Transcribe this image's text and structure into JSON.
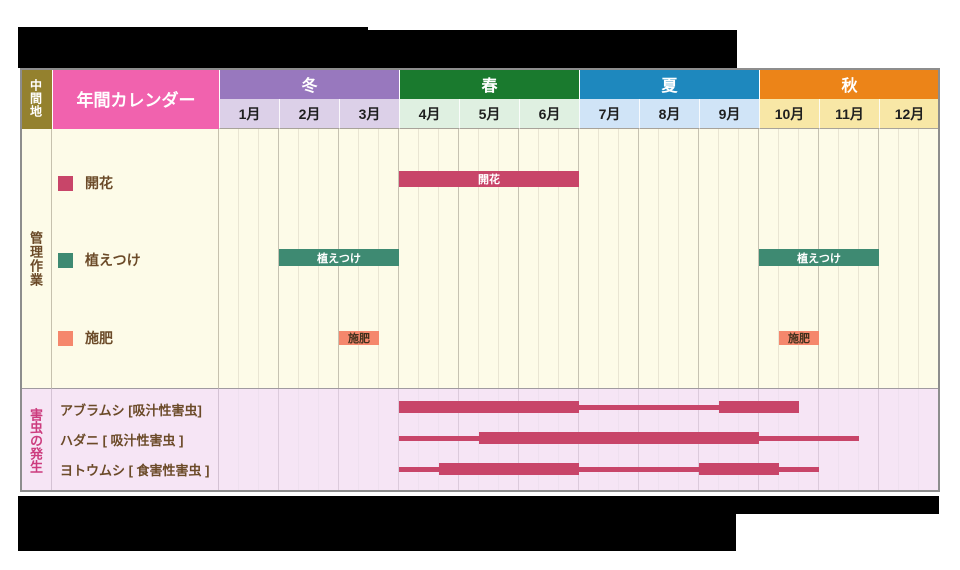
{
  "header": {
    "region": "中間地",
    "calendar_title": "年間カレンダー",
    "seasons": [
      {
        "label": "冬",
        "name": "winter",
        "color": "#9878BE",
        "month_bg": "#DCD0E8"
      },
      {
        "label": "春",
        "name": "spring",
        "color": "#1A7A2E",
        "month_bg": "#DFF0E1"
      },
      {
        "label": "夏",
        "name": "summer",
        "color": "#1E88BE",
        "month_bg": "#D0E4F7"
      },
      {
        "label": "秋",
        "name": "autumn",
        "color": "#EC8418",
        "month_bg": "#F8E7A6"
      }
    ],
    "months": [
      "1月",
      "2月",
      "3月",
      "4月",
      "5月",
      "6月",
      "7月",
      "8月",
      "9月",
      "10月",
      "11月",
      "12月"
    ]
  },
  "sections": {
    "management": {
      "label": "管理作業"
    },
    "pests": {
      "label": "害虫の発生"
    }
  },
  "chart_data": {
    "type": "gantt",
    "x_unit": "month number 1-13, fractional = thirds of a month",
    "categories": [
      "1月",
      "2月",
      "3月",
      "4月",
      "5月",
      "6月",
      "7月",
      "8月",
      "9月",
      "10月",
      "11月",
      "12月"
    ],
    "tasks": [
      {
        "name": "開花",
        "color": "#C84569",
        "bar_text_color": "#FFFFFF",
        "ranges": [
          {
            "from": 4,
            "to": 7
          }
        ]
      },
      {
        "name": "植えつけ",
        "color": "#3E8A72",
        "bar_text_color": "#FFFFFF",
        "ranges": [
          {
            "from": 2,
            "to": 4
          },
          {
            "from": 10,
            "to": 12
          }
        ]
      },
      {
        "name": "施肥",
        "color": "#F5876C",
        "bar_text_color": "#40301C",
        "ranges": [
          {
            "from": 3,
            "to": 3.67
          },
          {
            "from": 10.33,
            "to": 11
          }
        ]
      }
    ],
    "pest_rows": [
      {
        "name": "アブラムシ [吸汁性害虫]",
        "color": "#C84569",
        "segments": [
          {
            "from": 4,
            "to": 7,
            "level": "high"
          },
          {
            "from": 7,
            "to": 9.33,
            "level": "low"
          },
          {
            "from": 9.33,
            "to": 10.67,
            "level": "high"
          }
        ]
      },
      {
        "name": "ハダニ [ 吸汁性害虫 ]",
        "color": "#C84569",
        "segments": [
          {
            "from": 4,
            "to": 5.33,
            "level": "low"
          },
          {
            "from": 5.33,
            "to": 10,
            "level": "high"
          },
          {
            "from": 10,
            "to": 11.67,
            "level": "low"
          }
        ]
      },
      {
        "name": "ヨトウムシ [ 食害性害虫 ]",
        "color": "#C84569",
        "segments": [
          {
            "from": 4,
            "to": 4.67,
            "level": "low"
          },
          {
            "from": 4.67,
            "to": 7,
            "level": "high"
          },
          {
            "from": 7,
            "to": 9,
            "level": "low"
          },
          {
            "from": 9,
            "to": 10.33,
            "level": "high"
          },
          {
            "from": 10.33,
            "to": 11,
            "level": "low"
          }
        ]
      }
    ]
  }
}
